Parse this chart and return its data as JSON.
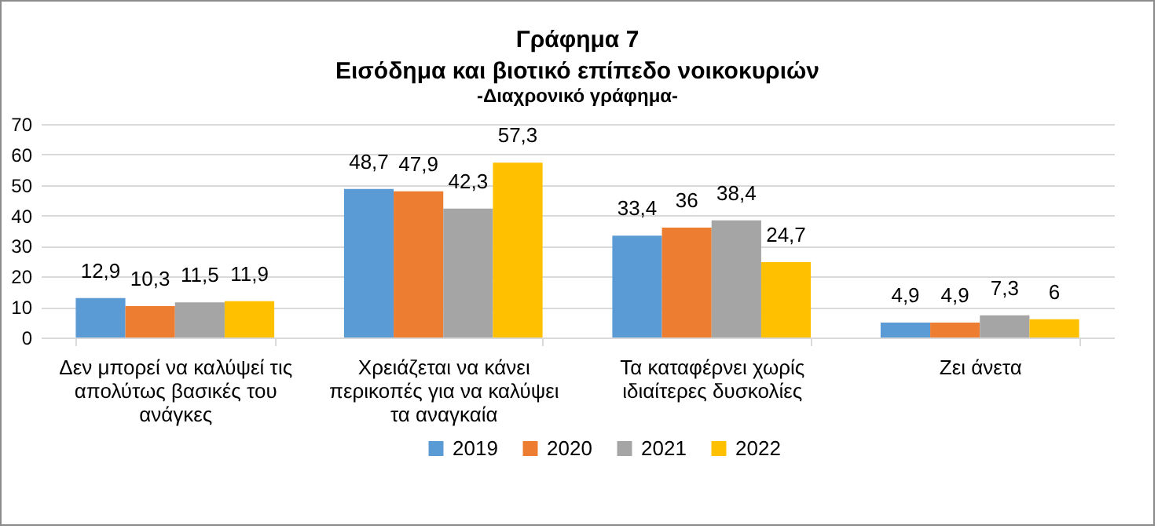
{
  "chart_data": {
    "type": "bar",
    "title": "Γράφημα 7\nΕισόδημα και βιοτικό επίπεδο νοικοκυριών",
    "subtitle": "-Διαχρονικό γράφημα-",
    "categories": [
      "Δεν μπορεί να καλύψεί τις απολύτως βασικές του ανάγκες",
      "Χρειάζεται να κάνει περικοπές για να καλύψει τα αναγκαία",
      "Τα καταφέρνει χωρίς ιδιαίτερες δυσκολίες",
      "Ζει άνετα"
    ],
    "series": [
      {
        "name": "2019",
        "color": "#5b9bd5",
        "values": [
          12.9,
          48.7,
          33.4,
          4.9
        ],
        "value_labels": [
          "12,9",
          "48,7",
          "33,4",
          "4,9"
        ]
      },
      {
        "name": "2020",
        "color": "#ed7d31",
        "values": [
          10.3,
          47.9,
          36,
          4.9
        ],
        "value_labels": [
          "10,3",
          "47,9",
          "36",
          "4,9"
        ]
      },
      {
        "name": "2021",
        "color": "#a5a5a5",
        "values": [
          11.5,
          42.3,
          38.4,
          7.3
        ],
        "value_labels": [
          "11,5",
          "42,3",
          "38,4",
          "7,3"
        ]
      },
      {
        "name": "2022",
        "color": "#ffc000",
        "values": [
          11.9,
          57.3,
          24.7,
          6
        ],
        "value_labels": [
          "11,9",
          "57,3",
          "24,7",
          "6"
        ]
      }
    ],
    "ylim": [
      0,
      70
    ],
    "yticks": [
      0,
      10,
      20,
      30,
      40,
      50,
      60,
      70
    ],
    "grid": "y",
    "legend": "bottom"
  }
}
